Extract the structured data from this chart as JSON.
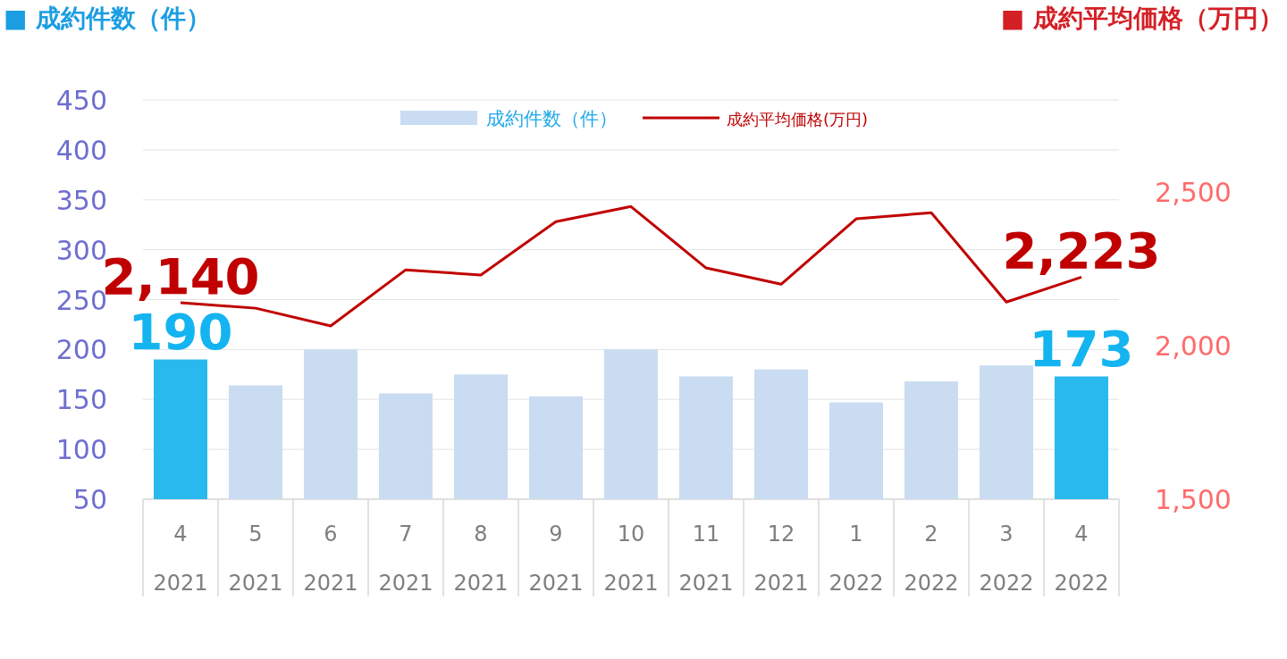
{
  "chart_data": {
    "type": "bar",
    "ylabel": "■ 成約件数（件）",
    "y2label": "■ 成約平均価格（万円）",
    "categories": [
      "4\n2021",
      "5\n2021",
      "6\n2021",
      "7\n2021",
      "8\n2021",
      "9\n2021",
      "10\n2021",
      "11\n2021",
      "12\n2021",
      "1\n2022",
      "2\n2022",
      "3\n2022",
      "4\n2022"
    ],
    "series": [
      {
        "name": "成約件数（件）",
        "color": "#c9dcf2",
        "colors": [
          "#29b9ee",
          "#c9dcf2",
          "#c9dcf2",
          "#c9dcf2",
          "#c9dcf2",
          "#c9dcf2",
          "#c9dcf2",
          "#c9dcf2",
          "#c9dcf2",
          "#c9dcf2",
          "#c9dcf2",
          "#c9dcf2",
          "#29b9ee"
        ],
        "values": [
          190,
          164,
          200,
          156,
          175,
          153,
          200,
          173,
          180,
          147,
          168,
          184,
          173
        ],
        "value_labels": [
          "190",
          null,
          null,
          null,
          null,
          null,
          null,
          null,
          null,
          null,
          null,
          null,
          "173"
        ]
      },
      {
        "name": "成約平均価格(万円)",
        "type": "line",
        "axis": "y2",
        "color": "#c00000",
        "values": [
          2140,
          2122,
          2064,
          2247,
          2230,
          2404,
          2453,
          2253,
          2200,
          2413,
          2433,
          2142,
          2223
        ],
        "value_labels": [
          "2,140",
          null,
          null,
          null,
          null,
          null,
          null,
          null,
          null,
          null,
          null,
          null,
          "2,223"
        ]
      }
    ],
    "ylim": [
      50,
      450
    ],
    "yticks": [
      50,
      100,
      150,
      200,
      250,
      300,
      350,
      400,
      450
    ],
    "y2lim": [
      1500,
      2800
    ],
    "y2ticks": [
      {
        "value": 1500,
        "label": "1,500"
      },
      {
        "value": 2000,
        "label": "2,000"
      },
      {
        "value": 2500,
        "label": "2,500"
      }
    ],
    "grid": "y",
    "legend": "top"
  }
}
